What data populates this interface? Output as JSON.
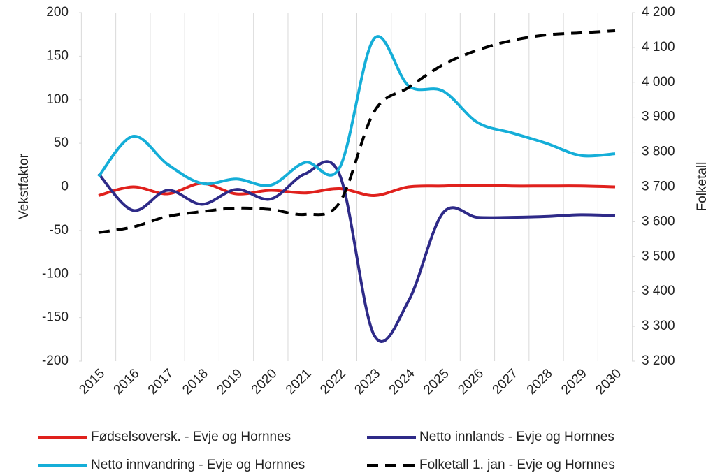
{
  "chart_data": {
    "type": "line",
    "y_label": "Vekstfaktor",
    "y2_label": "Folketall",
    "categories": [
      "2015",
      "2016",
      "2017",
      "2018",
      "2019",
      "2020",
      "2021",
      "2022",
      "2023",
      "2024",
      "2025",
      "2026",
      "2027",
      "2028",
      "2029",
      "2030"
    ],
    "series": [
      {
        "name": "Fødselsoversk. - Evje og Hornnes",
        "color": "#e0211d",
        "values": [
          -10,
          0,
          -8,
          4,
          -8,
          -4,
          -7,
          -2,
          -10,
          0,
          1,
          2,
          1,
          1,
          1,
          0
        ]
      },
      {
        "name": "Netto innlands - Evje og Hornnes",
        "color": "#2e2a88",
        "values": [
          15,
          -27,
          -4,
          -20,
          -3,
          -14,
          15,
          14,
          -170,
          -131,
          -30,
          -35,
          -35,
          -34,
          -32,
          -33
        ]
      },
      {
        "name": "Netto innvandring - Evje og Hornnes",
        "color": "#15aed8",
        "values": [
          12,
          58,
          26,
          4,
          9,
          2,
          28,
          22,
          170,
          116,
          110,
          74,
          62,
          50,
          36,
          38
        ]
      },
      {
        "name": "Folketall 1. jan - Evje og Hornnes",
        "color": "#000000",
        "dash": true,
        "axis": "y2",
        "values": [
          3569,
          3585,
          3615,
          3629,
          3639,
          3635,
          3621,
          3655,
          3915,
          3985,
          4050,
          4092,
          4120,
          4136,
          4142,
          4148
        ]
      }
    ],
    "ylim": [
      -200,
      200
    ],
    "yticks": [
      -200,
      -150,
      -100,
      -50,
      0,
      50,
      100,
      150,
      200
    ],
    "y2lim": [
      3200,
      4200
    ],
    "y2ticks": [
      {
        "value": 3200,
        "label": "3 200"
      },
      {
        "value": 3300,
        "label": "3 300"
      },
      {
        "value": 3400,
        "label": "3 400"
      },
      {
        "value": 3500,
        "label": "3 500"
      },
      {
        "value": 3600,
        "label": "3 600"
      },
      {
        "value": 3700,
        "label": "3 700"
      },
      {
        "value": 3800,
        "label": "3 800"
      },
      {
        "value": 3900,
        "label": "3 900"
      },
      {
        "value": 4000,
        "label": "4 000"
      },
      {
        "value": 4100,
        "label": "4 100"
      },
      {
        "value": 4200,
        "label": "4 200"
      }
    ],
    "legend": "bottom",
    "smooth": true
  }
}
